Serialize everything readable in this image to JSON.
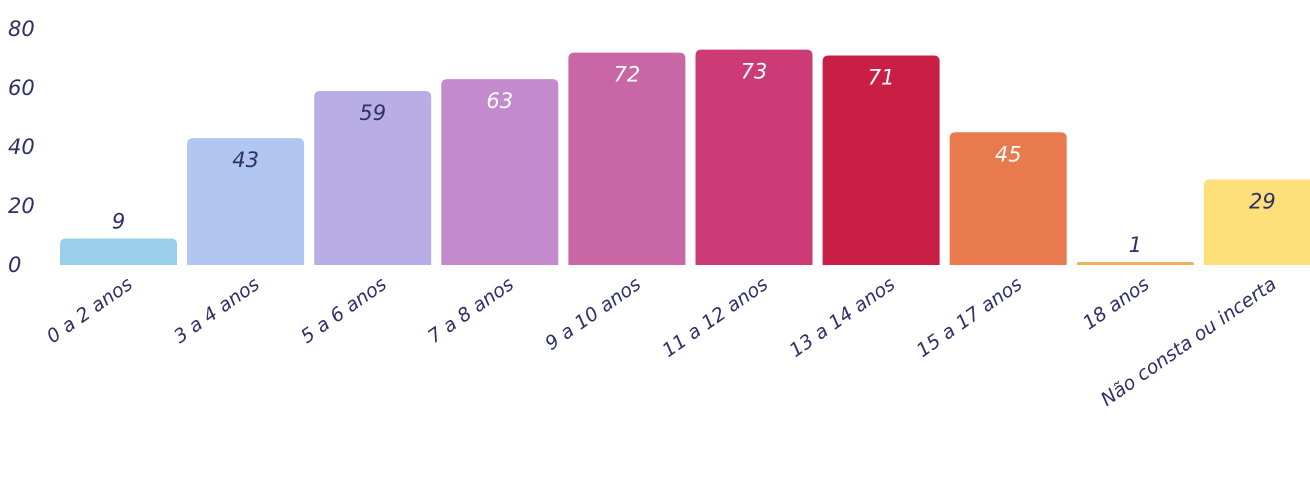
{
  "chart_data": {
    "type": "bar",
    "title": "",
    "xlabel": "",
    "ylabel": "",
    "ylim": [
      0,
      80
    ],
    "yticks": [
      0,
      20,
      40,
      60,
      80
    ],
    "grid": false,
    "categories": [
      "0 a 2 anos",
      "3 a 4 anos",
      "5 a 6 anos",
      "7 a 8 anos",
      "9 a 10 anos",
      "11 a 12 anos",
      "13 a 14 anos",
      "15 a 17 anos",
      "18 anos",
      "Não consta ou incerta"
    ],
    "values": [
      9,
      43,
      59,
      63,
      72,
      73,
      71,
      45,
      1,
      29
    ],
    "colors": [
      "#99cfeb",
      "#b1c6f1",
      "#b9ade5",
      "#c48ace",
      "#c966a6",
      "#cc3b76",
      "#c91f45",
      "#e97a4e",
      "#f1b05d",
      "#fde07a"
    ],
    "label_colors": [
      "#2e2f66",
      "#2e2f66",
      "#2e2f66",
      "#ffffff",
      "#ffffff",
      "#ffffff",
      "#ffffff",
      "#ffffff",
      "#2e2f66",
      "#2e2f66"
    ]
  }
}
